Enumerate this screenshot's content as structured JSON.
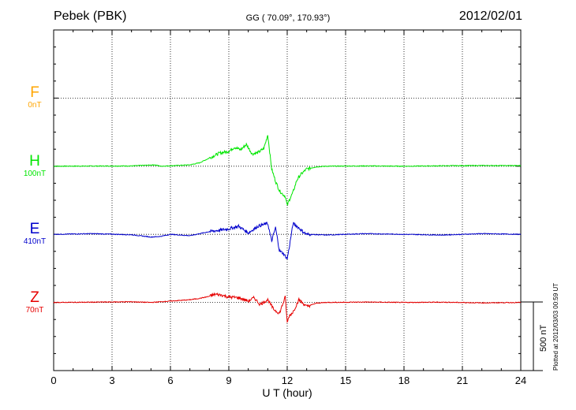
{
  "header": {
    "station": "Pebek (PBK)",
    "coordinates": "GG ( 70.09°, 170.93°)",
    "date": "2012/02/01"
  },
  "footer": {
    "plotted": "Plotted at 2012/03/03 00:59 UT"
  },
  "chart_data": {
    "type": "line",
    "xlabel": "U T (hour)",
    "xlim": [
      0,
      24
    ],
    "xticks": [
      "0",
      "3",
      "6",
      "9",
      "12",
      "15",
      "18",
      "21",
      "24"
    ],
    "grid": true,
    "scale_bar": {
      "label": "500 nT",
      "value_nT": 500
    },
    "series": [
      {
        "name": "F",
        "scale": "0nT",
        "color": "#ffa500",
        "x": [],
        "y": []
      },
      {
        "name": "H",
        "scale": "100nT",
        "color": "#00e600",
        "x": [
          0,
          2,
          4,
          5.2,
          5.5,
          6,
          7,
          7.5,
          8,
          8.5,
          9,
          9.3,
          9.6,
          9.9,
          10.2,
          10.5,
          10.8,
          11,
          11.2,
          11.4,
          11.6,
          11.8,
          11.9,
          12.0,
          12.1,
          12.3,
          12.5,
          12.7,
          13,
          13.5,
          14,
          16,
          18,
          20,
          22,
          24
        ],
        "y": [
          0,
          1,
          2,
          10,
          0,
          3,
          10,
          25,
          60,
          95,
          110,
          140,
          120,
          160,
          90,
          100,
          130,
          230,
          -20,
          -110,
          -180,
          -210,
          -220,
          -290,
          -250,
          -190,
          -100,
          -60,
          -20,
          -5,
          0,
          2,
          0,
          3,
          5,
          4
        ]
      },
      {
        "name": "E",
        "scale": "410nT",
        "color": "#0000cc",
        "x": [
          0,
          2,
          4,
          5,
          5.5,
          6,
          7,
          8,
          9,
          9.5,
          10,
          10.5,
          11,
          11.2,
          11.4,
          11.6,
          11.8,
          12.0,
          12.1,
          12.3,
          12.5,
          12.8,
          13,
          14,
          16,
          18,
          20,
          22,
          24
        ],
        "y": [
          0,
          5,
          -3,
          -20,
          -15,
          0,
          -10,
          20,
          40,
          60,
          10,
          60,
          80,
          -50,
          50,
          -120,
          -140,
          -180,
          -100,
          80,
          60,
          20,
          0,
          -5,
          5,
          0,
          -5,
          5,
          0
        ],
        "y_unit_per_px": 5
      },
      {
        "name": "Z",
        "scale": "70nT",
        "color": "#e60000",
        "x": [
          0,
          2,
          4,
          5,
          6,
          7,
          7.5,
          8,
          8.3,
          8.6,
          9,
          9.5,
          10,
          10.3,
          10.6,
          11,
          11.3,
          11.6,
          11.9,
          12.0,
          12.1,
          12.3,
          12.6,
          13,
          13.5,
          14,
          16,
          18,
          20,
          22,
          24
        ],
        "y": [
          0,
          2,
          5,
          0,
          10,
          20,
          30,
          45,
          60,
          55,
          40,
          35,
          10,
          35,
          -15,
          20,
          -50,
          -80,
          40,
          -150,
          -100,
          -70,
          20,
          -30,
          -5,
          0,
          3,
          0,
          2,
          -3,
          0
        ]
      }
    ]
  }
}
